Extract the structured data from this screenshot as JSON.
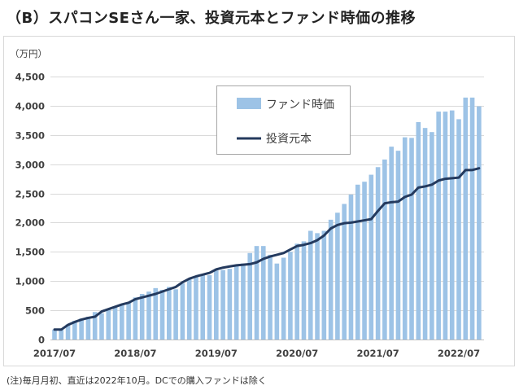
{
  "title": "（B）スパコンSEさん一家、投資元本とファンド時価の推移",
  "footnote": "(注)毎月月初、直近は2022年10月。DCでの購入ファンドは除く",
  "chart_data": {
    "type": "bar",
    "title": "（B）スパコンSEさん一家、投資元本とファンド時価の推移",
    "ylabel": "（万円）",
    "xlabel": "",
    "ylim": [
      0,
      4500
    ],
    "yticks": [
      0,
      500,
      1000,
      1500,
      2000,
      2500,
      3000,
      3500,
      4000,
      4500
    ],
    "ytick_labels": [
      "0",
      "500",
      "1,000",
      "1,500",
      "2,000",
      "2,500",
      "3,000",
      "3,500",
      "4,000",
      "4,500"
    ],
    "xtick_labels": [
      "2017/07",
      "2018/07",
      "2019/07",
      "2020/07",
      "2021/07",
      "2022/07"
    ],
    "grid": true,
    "legend_placement": "top-center",
    "x": [
      "2017/07",
      "2017/08",
      "2017/09",
      "2017/10",
      "2017/11",
      "2017/12",
      "2018/01",
      "2018/02",
      "2018/03",
      "2018/04",
      "2018/05",
      "2018/06",
      "2018/07",
      "2018/08",
      "2018/09",
      "2018/10",
      "2018/11",
      "2018/12",
      "2019/01",
      "2019/02",
      "2019/03",
      "2019/04",
      "2019/05",
      "2019/06",
      "2019/07",
      "2019/08",
      "2019/09",
      "2019/10",
      "2019/11",
      "2019/12",
      "2020/01",
      "2020/02",
      "2020/03",
      "2020/04",
      "2020/05",
      "2020/06",
      "2020/07",
      "2020/08",
      "2020/09",
      "2020/10",
      "2020/11",
      "2020/12",
      "2021/01",
      "2021/02",
      "2021/03",
      "2021/04",
      "2021/05",
      "2021/06",
      "2021/07",
      "2021/08",
      "2021/09",
      "2021/10",
      "2021/11",
      "2021/12",
      "2022/01",
      "2022/02",
      "2022/03",
      "2022/04",
      "2022/05",
      "2022/06",
      "2022/07",
      "2022/08",
      "2022/09",
      "2022/10"
    ],
    "series": [
      {
        "name": "ファンド時価",
        "kind": "bar",
        "color": "#9dc3e6",
        "values": [
          170,
          180,
          260,
          320,
          360,
          390,
          470,
          450,
          520,
          560,
          600,
          640,
          720,
          780,
          820,
          880,
          850,
          900,
          860,
          960,
          1030,
          1080,
          1120,
          1100,
          1180,
          1190,
          1210,
          1260,
          1300,
          1480,
          1600,
          1600,
          1450,
          1300,
          1400,
          1500,
          1640,
          1680,
          1860,
          1820,
          1860,
          2050,
          2170,
          2320,
          2480,
          2650,
          2700,
          2820,
          2950,
          3080,
          3300,
          3230,
          3460,
          3450,
          3720,
          3620,
          3550,
          3900,
          3900,
          3920,
          3770,
          4140,
          4140,
          3990
        ]
      },
      {
        "name": "投資元本",
        "kind": "line",
        "color": "#243a5e",
        "values": [
          170,
          170,
          250,
          300,
          340,
          370,
          390,
          480,
          520,
          560,
          600,
          630,
          690,
          720,
          750,
          780,
          820,
          860,
          900,
          980,
          1040,
          1080,
          1110,
          1140,
          1200,
          1230,
          1250,
          1270,
          1280,
          1290,
          1320,
          1380,
          1420,
          1450,
          1480,
          1540,
          1600,
          1620,
          1650,
          1700,
          1780,
          1900,
          1960,
          1990,
          2000,
          2020,
          2040,
          2060,
          2200,
          2330,
          2350,
          2360,
          2440,
          2480,
          2600,
          2620,
          2650,
          2720,
          2750,
          2760,
          2770,
          2900,
          2900,
          2930
        ]
      }
    ],
    "colors": {
      "grid": "#d9d9d9",
      "axis": "#bfbfbf",
      "frame": "#d9d9d9",
      "legend_border": "#a6a6a6"
    }
  }
}
